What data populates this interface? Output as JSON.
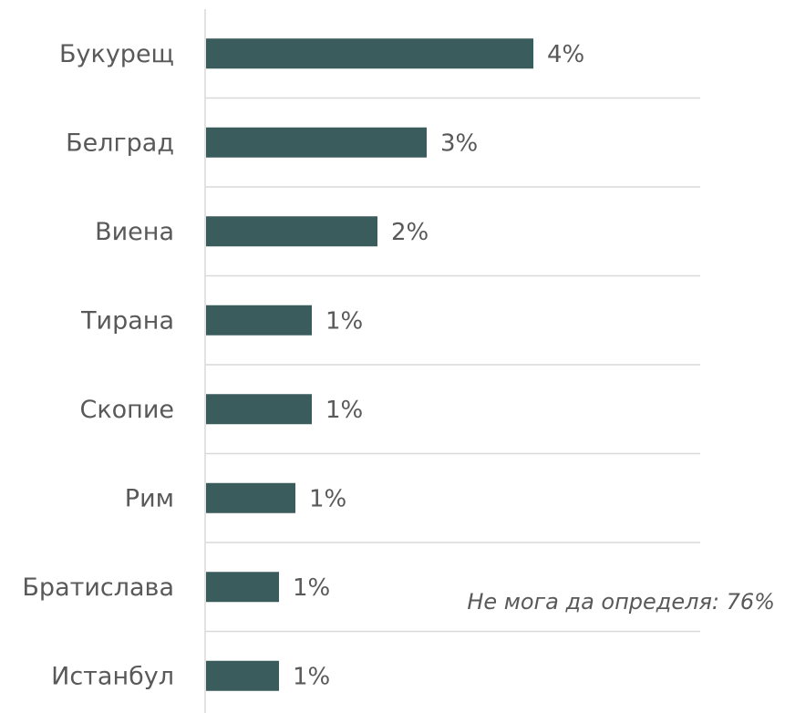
{
  "chart_data": {
    "type": "bar",
    "orientation": "horizontal",
    "categories": [
      "Букурещ",
      "Белград",
      "Виена",
      "Тирана",
      "Скопие",
      "Рим",
      "Братислава",
      "Истанбул"
    ],
    "values": [
      4,
      3,
      2,
      1,
      1,
      1,
      1,
      1
    ],
    "data_labels": [
      "4%",
      "3%",
      "2%",
      "1%",
      "1%",
      "1%",
      "1%",
      "1%"
    ],
    "title": "",
    "xlabel": "",
    "ylabel": "",
    "grid": true,
    "legend": "none",
    "bar_color": "#3b5c5d",
    "annotation": "Не мога да определя: 76%"
  }
}
